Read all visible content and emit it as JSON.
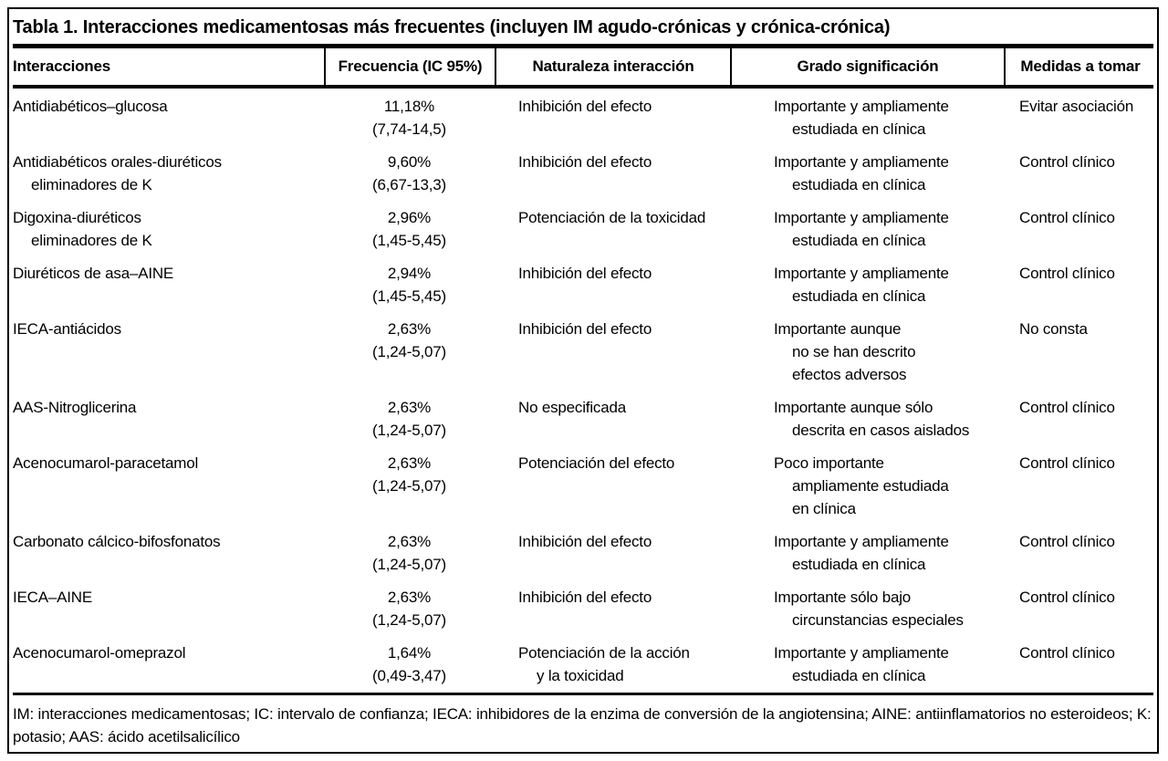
{
  "table": {
    "title": "Tabla 1. Interacciones medicamentosas más frecuentes (incluyen IM agudo-crónicas y crónica-crónica)",
    "columns": [
      "Interacciones",
      "Frecuencia (IC 95%)",
      "Naturaleza interacción",
      "Grado significación",
      "Medidas a tomar"
    ],
    "rows": [
      {
        "interaccion": [
          "Antidiabéticos–glucosa"
        ],
        "frecuencia": [
          "11,18%",
          "(7,74-14,5)"
        ],
        "naturaleza": [
          "Inhibición del efecto"
        ],
        "grado": [
          "Importante y ampliamente",
          "estudiada en clínica"
        ],
        "medidas": "Evitar asociación"
      },
      {
        "interaccion": [
          "Antidiabéticos orales-diuréticos",
          "eliminadores de K"
        ],
        "frecuencia": [
          "9,60%",
          "(6,67-13,3)"
        ],
        "naturaleza": [
          "Inhibición del efecto"
        ],
        "grado": [
          "Importante y ampliamente",
          "estudiada en clínica"
        ],
        "medidas": "Control clínico"
      },
      {
        "interaccion": [
          "Digoxina-diuréticos",
          "eliminadores de K"
        ],
        "frecuencia": [
          "2,96%",
          "(1,45-5,45)"
        ],
        "naturaleza": [
          "Potenciación de la toxicidad"
        ],
        "grado": [
          "Importante y ampliamente",
          "estudiada en clínica"
        ],
        "medidas": "Control clínico"
      },
      {
        "interaccion": [
          "Diuréticos de asa–AINE"
        ],
        "frecuencia": [
          "2,94%",
          "(1,45-5,45)"
        ],
        "naturaleza": [
          "Inhibición del efecto"
        ],
        "grado": [
          "Importante y ampliamente",
          "estudiada en clínica"
        ],
        "medidas": "Control clínico"
      },
      {
        "interaccion": [
          "IECA-antiácidos"
        ],
        "frecuencia": [
          "2,63%",
          "(1,24-5,07)"
        ],
        "naturaleza": [
          "Inhibición del efecto"
        ],
        "grado": [
          "Importante aunque",
          "no se han descrito",
          "efectos adversos"
        ],
        "medidas": "No consta"
      },
      {
        "interaccion": [
          "AAS-Nitroglicerina"
        ],
        "frecuencia": [
          "2,63%",
          "(1,24-5,07)"
        ],
        "naturaleza": [
          "No especificada"
        ],
        "grado": [
          "Importante aunque sólo",
          "descrita en casos aislados"
        ],
        "medidas": "Control clínico"
      },
      {
        "interaccion": [
          "Acenocumarol-paracetamol"
        ],
        "frecuencia": [
          "2,63%",
          "(1,24-5,07)"
        ],
        "naturaleza": [
          "Potenciación del efecto"
        ],
        "grado": [
          "Poco importante",
          "ampliamente estudiada",
          "en clínica"
        ],
        "medidas": "Control clínico"
      },
      {
        "interaccion": [
          "Carbonato cálcico-bifosfonatos"
        ],
        "frecuencia": [
          "2,63%",
          "(1,24-5,07)"
        ],
        "naturaleza": [
          "Inhibición del efecto"
        ],
        "grado": [
          "Importante y ampliamente",
          "estudiada en clínica"
        ],
        "medidas": "Control clínico"
      },
      {
        "interaccion": [
          "IECA–AINE"
        ],
        "frecuencia": [
          "2,63%",
          "(1,24-5,07)"
        ],
        "naturaleza": [
          "Inhibición del efecto"
        ],
        "grado": [
          "Importante sólo bajo",
          "circunstancias especiales"
        ],
        "medidas": "Control clínico"
      },
      {
        "interaccion": [
          "Acenocumarol-omeprazol"
        ],
        "frecuencia": [
          "1,64%",
          "(0,49-3,47)"
        ],
        "naturaleza": [
          "Potenciación de la acción",
          "y la toxicidad"
        ],
        "grado": [
          "Importante y ampliamente",
          "estudiada en clínica"
        ],
        "medidas": "Control clínico"
      }
    ],
    "footnote": "IM: interacciones medicamentosas; IC: intervalo de confianza; IECA: inhibidores de la enzima de conversión de la angiotensina; AINE: antiinflamatorios no esteroideos; K: potasio; AAS: ácido acetilsalicílico"
  }
}
